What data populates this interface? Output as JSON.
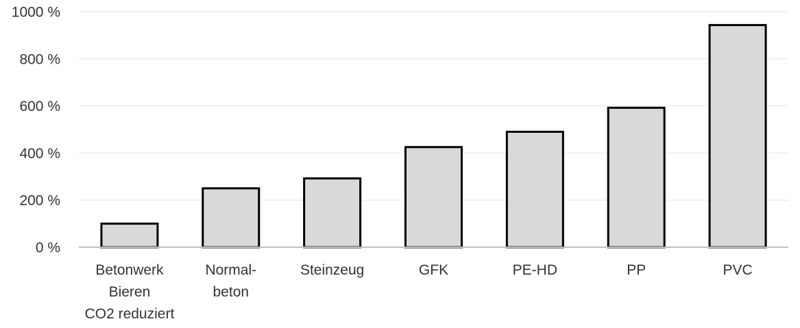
{
  "chart_data": {
    "type": "bar",
    "categories": [
      [
        "Betonwerk",
        "Bieren",
        "CO2 reduziert"
      ],
      [
        "Normal-",
        "beton"
      ],
      [
        "Steinzeug"
      ],
      [
        "GFK"
      ],
      [
        "PE-HD"
      ],
      [
        "PP"
      ],
      [
        "PVC"
      ]
    ],
    "values": [
      100,
      250,
      292,
      425,
      490,
      592,
      943
    ],
    "ylim": [
      0,
      1000
    ],
    "yticks": [
      0,
      200,
      400,
      600,
      800,
      1000
    ],
    "ytick_suffix": " %",
    "grid": true,
    "bar_color": "#d9d9d9",
    "bar_edge_color": "#000000",
    "title": "",
    "xlabel": "",
    "ylabel": ""
  }
}
